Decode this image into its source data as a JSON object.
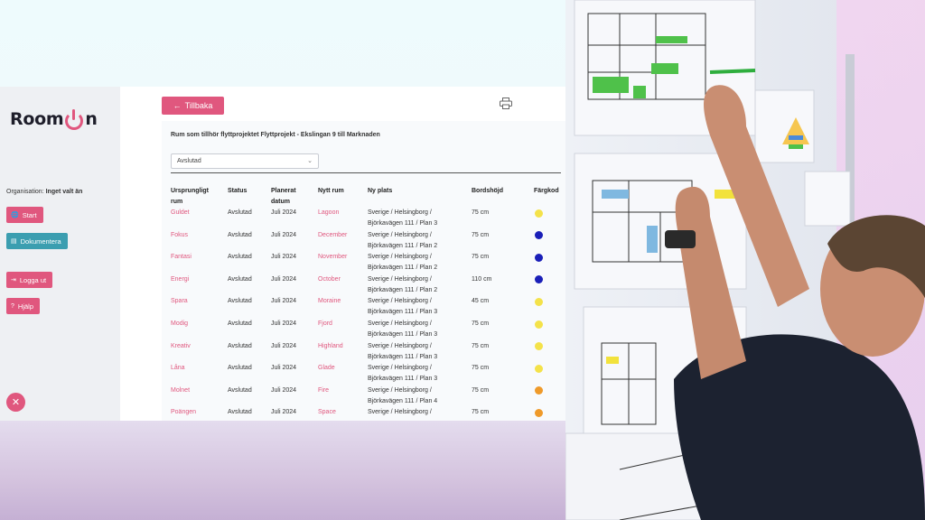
{
  "brand": {
    "name_left": "Room",
    "name_right": "n"
  },
  "sidebar": {
    "org_label": "Organisation:",
    "org_value": "Inget valt än",
    "buttons": [
      {
        "label": "Start",
        "icon": "globe-icon"
      },
      {
        "label": "Dokumentera",
        "icon": "document-icon"
      },
      {
        "label": "Logga ut",
        "icon": "logout-icon"
      },
      {
        "label": "Hjälp",
        "icon": "help-icon"
      }
    ]
  },
  "toolbar": {
    "back_label": "Tillbaka",
    "print_icon": "printer-icon"
  },
  "page": {
    "title": "Rum som tillhör flyttprojektet Flyttprojekt - Ekslingan 9 till Marknaden",
    "status_filter": "Avslutad"
  },
  "table": {
    "headers": {
      "orig_room_1": "Ursprungligt",
      "orig_room_2": "rum",
      "status": "Status",
      "planned_1": "Planerat",
      "planned_2": "datum",
      "new_room": "Nytt rum",
      "new_place": "Ny plats",
      "desk_height": "Bordshöjd",
      "color_code": "Färgkod"
    },
    "rows": [
      {
        "orig": "Guldet",
        "status": "Avslutad",
        "date": "Juli 2024",
        "new_room": "Lagoon",
        "place1": "Sverige / Helsingborg /",
        "place2": "Björkavägen 111 / Plan 3",
        "height": "75 cm",
        "color": "#f4e24a"
      },
      {
        "orig": "Fokus",
        "status": "Avslutad",
        "date": "Juli 2024",
        "new_room": "December",
        "place1": "Sverige / Helsingborg /",
        "place2": "Björkavägen 111 / Plan 2",
        "height": "75 cm",
        "color": "#1a1fb8"
      },
      {
        "orig": "Fantasi",
        "status": "Avslutad",
        "date": "Juli 2024",
        "new_room": "November",
        "place1": "Sverige / Helsingborg /",
        "place2": "Björkavägen 111 / Plan 2",
        "height": "75 cm",
        "color": "#1a1fb8"
      },
      {
        "orig": "Energi",
        "status": "Avslutad",
        "date": "Juli 2024",
        "new_room": "October",
        "place1": "Sverige / Helsingborg /",
        "place2": "Björkavägen 111 / Plan 2",
        "height": "110 cm",
        "color": "#1a1fb8"
      },
      {
        "orig": "Spara",
        "status": "Avslutad",
        "date": "Juli 2024",
        "new_room": "Moraine",
        "place1": "Sverige / Helsingborg /",
        "place2": "Björkavägen 111 / Plan 3",
        "height": "45 cm",
        "color": "#f4e24a"
      },
      {
        "orig": "Modig",
        "status": "Avslutad",
        "date": "Juli 2024",
        "new_room": "Fjord",
        "place1": "Sverige / Helsingborg /",
        "place2": "Björkavägen 111 / Plan 3",
        "height": "75 cm",
        "color": "#f4e24a"
      },
      {
        "orig": "Kreativ",
        "status": "Avslutad",
        "date": "Juli 2024",
        "new_room": "Highland",
        "place1": "Sverige / Helsingborg /",
        "place2": "Björkavägen 111 / Plan 3",
        "height": "75 cm",
        "color": "#f4e24a"
      },
      {
        "orig": "Låna",
        "status": "Avslutad",
        "date": "Juli 2024",
        "new_room": "Glade",
        "place1": "Sverige / Helsingborg /",
        "place2": "Björkavägen 111 / Plan 3",
        "height": "75 cm",
        "color": "#f4e24a"
      },
      {
        "orig": "Molnet",
        "status": "Avslutad",
        "date": "Juli 2024",
        "new_room": "Fire",
        "place1": "Sverige / Helsingborg /",
        "place2": "Björkavägen 111 / Plan 4",
        "height": "75 cm",
        "color": "#ef9a2a"
      },
      {
        "orig": "Poängen",
        "status": "Avslutad",
        "date": "Juli 2024",
        "new_room": "Space",
        "place1": "Sverige / Helsingborg /",
        "place2": "",
        "height": "75 cm",
        "color": "#ef9a2a"
      }
    ]
  },
  "colors": {
    "accent": "#e0577e",
    "teal": "#3b9eb0"
  },
  "photo": {
    "subject": "person-marking-floor-plans-photo"
  }
}
